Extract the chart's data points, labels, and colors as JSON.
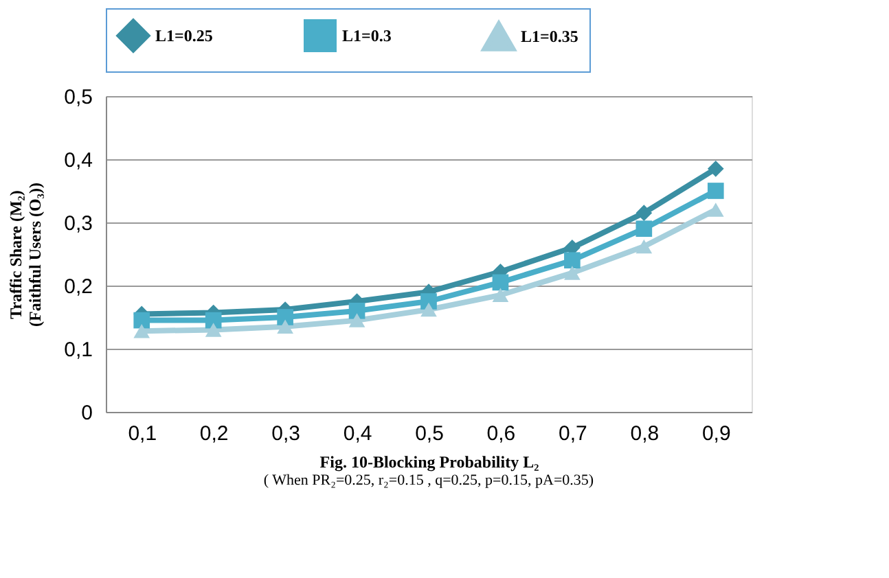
{
  "chart_data": {
    "type": "line",
    "categories": [
      "0,1",
      "0,2",
      "0,3",
      "0,4",
      "0,5",
      "0,6",
      "0,7",
      "0,8",
      "0,9"
    ],
    "series": [
      {
        "name": "L1=0.25",
        "color": "#3a8fa3",
        "marker": "diamond",
        "values": [
          0.155,
          0.157,
          0.162,
          0.175,
          0.19,
          0.222,
          0.26,
          0.315,
          0.385
        ]
      },
      {
        "name": "L1=0.3",
        "color": "#4aaec9",
        "marker": "square",
        "values": [
          0.145,
          0.145,
          0.15,
          0.16,
          0.175,
          0.205,
          0.24,
          0.29,
          0.35
        ]
      },
      {
        "name": "L1=0.35",
        "color": "#a6cfdc",
        "marker": "triangle",
        "values": [
          0.128,
          0.13,
          0.135,
          0.145,
          0.162,
          0.185,
          0.22,
          0.262,
          0.32
        ]
      }
    ],
    "ylim": [
      0,
      0.5
    ],
    "yticks": [
      0,
      {
        "value": 0.1,
        "label": "0,1"
      },
      {
        "value": 0.2,
        "label": "0,2"
      },
      {
        "value": 0.3,
        "label": "0,3"
      },
      {
        "value": 0.4,
        "label": "0,4"
      },
      {
        "value": 0.5,
        "label": "0,5"
      }
    ],
    "xlabel": "Fig. 10-Blocking Probability L₂",
    "ylabel": "Traffic Share (M₂)\n(Faithful Users (O₃))",
    "annotations": [
      "( When PR₂=0.25, r₂=0.15 ,  q=0.25, p=0.15, pA=0.35)"
    ],
    "grid": "y",
    "legend": "top",
    "line_style": "solid"
  }
}
